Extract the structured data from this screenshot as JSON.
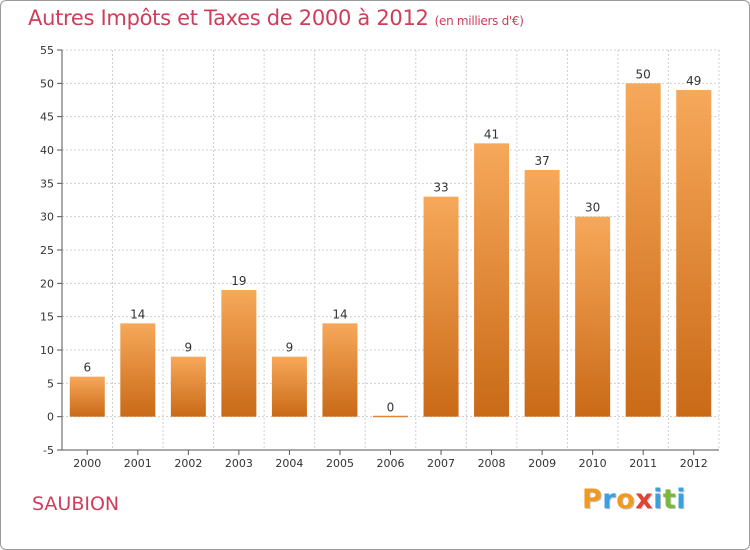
{
  "chart_data": {
    "type": "bar",
    "title": "Autres Impôts et Taxes de 2000 à 2012",
    "subtitle": "(en milliers d'€)",
    "categories": [
      "2000",
      "2001",
      "2002",
      "2003",
      "2004",
      "2005",
      "2006",
      "2007",
      "2008",
      "2009",
      "2010",
      "2011",
      "2012"
    ],
    "values": [
      6,
      14,
      9,
      19,
      9,
      14,
      0,
      33,
      41,
      37,
      30,
      50,
      49
    ],
    "ylim": [
      -5,
      55
    ],
    "yticks": [
      -5,
      0,
      5,
      10,
      15,
      20,
      25,
      30,
      35,
      40,
      45,
      50,
      55
    ],
    "grid": true,
    "bar_color_top": "#f7a85a",
    "bar_color_bottom": "#c96a17"
  },
  "location": "SAUBION",
  "brand": {
    "letters": [
      "P",
      "r",
      "o",
      "x",
      "i",
      "t",
      "i"
    ],
    "colors": [
      "#f29a1d",
      "#3aa0e0",
      "#f29a1d",
      "#e0432f",
      "#3aa0e0",
      "#7ab83a",
      "#3aa0e0"
    ]
  }
}
